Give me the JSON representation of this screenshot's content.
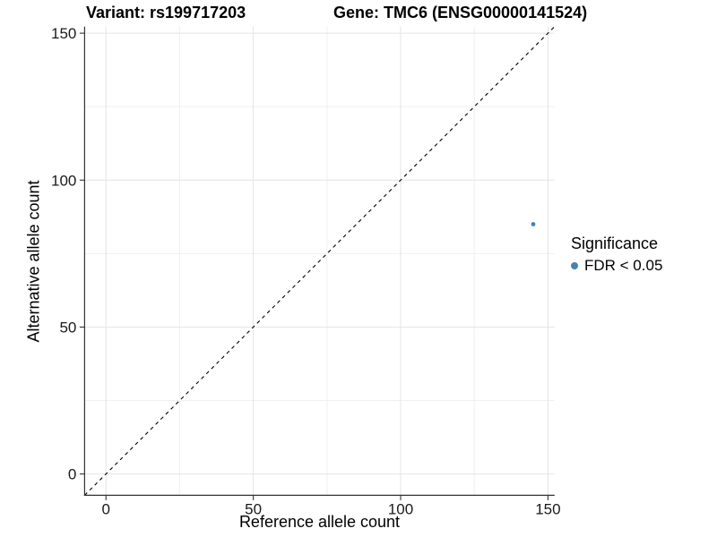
{
  "titles": {
    "variant": "Variant: rs199717203",
    "gene": "Gene: TMC6 (ENSG00000141524)"
  },
  "chart_data": {
    "type": "scatter",
    "title": "Variant: rs199717203    Gene: TMC6 (ENSG00000141524)",
    "xlabel": "Reference allele count",
    "ylabel": "Alternative allele count",
    "xlim": [
      -7.25,
      152.25
    ],
    "ylim": [
      -7.25,
      152.25
    ],
    "major_ticks": [
      0,
      50,
      100,
      150
    ],
    "minor_ticks": [
      25,
      75,
      125
    ],
    "grid": "on",
    "identity_line": {
      "slope": 1,
      "intercept": 0,
      "style": "dashed",
      "color": "#000000"
    },
    "series": [
      {
        "name": "FDR < 0.05",
        "color": "#4682b4",
        "points": [
          {
            "x": 145,
            "y": 85
          }
        ]
      }
    ],
    "legend": {
      "title": "Significance",
      "position": "right",
      "items": [
        {
          "label": "FDR < 0.05",
          "color": "#4682b4"
        }
      ]
    }
  },
  "colors": {
    "point_blue": "#4682b4",
    "grid_major": "#e4e4e4",
    "grid_minor": "#f0f0f0",
    "axis_line": "#333333",
    "tick_text": "#1a1a1a"
  }
}
